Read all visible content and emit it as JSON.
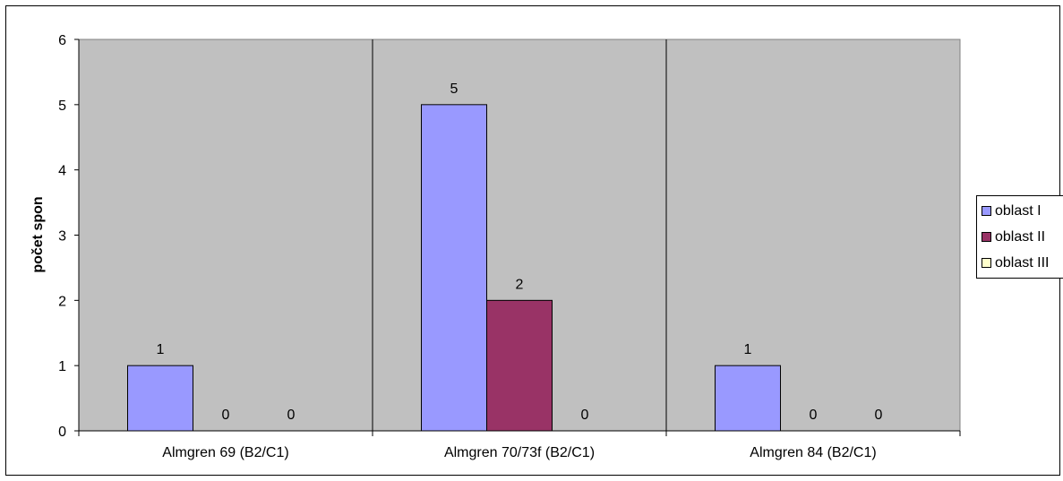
{
  "chart_data": {
    "type": "bar",
    "title": "",
    "xlabel": "",
    "ylabel": "počet spon",
    "ylim": [
      0,
      6
    ],
    "yticks": [
      0,
      1,
      2,
      3,
      4,
      5,
      6
    ],
    "grid": false,
    "legend_position": "right",
    "plot_background": "#C0C0C0",
    "categories": [
      "Almgren 69 (B2/C1)",
      "Almgren 70/73f (B2/C1)",
      "Almgren 84 (B2/C1)"
    ],
    "series": [
      {
        "name": "oblast I",
        "color": "#9999FF",
        "values": [
          1,
          5,
          1
        ]
      },
      {
        "name": "oblast II",
        "color": "#993366",
        "values": [
          0,
          2,
          0
        ]
      },
      {
        "name": "oblast III",
        "color": "#FFFFCC",
        "values": [
          0,
          0,
          0
        ]
      }
    ]
  }
}
